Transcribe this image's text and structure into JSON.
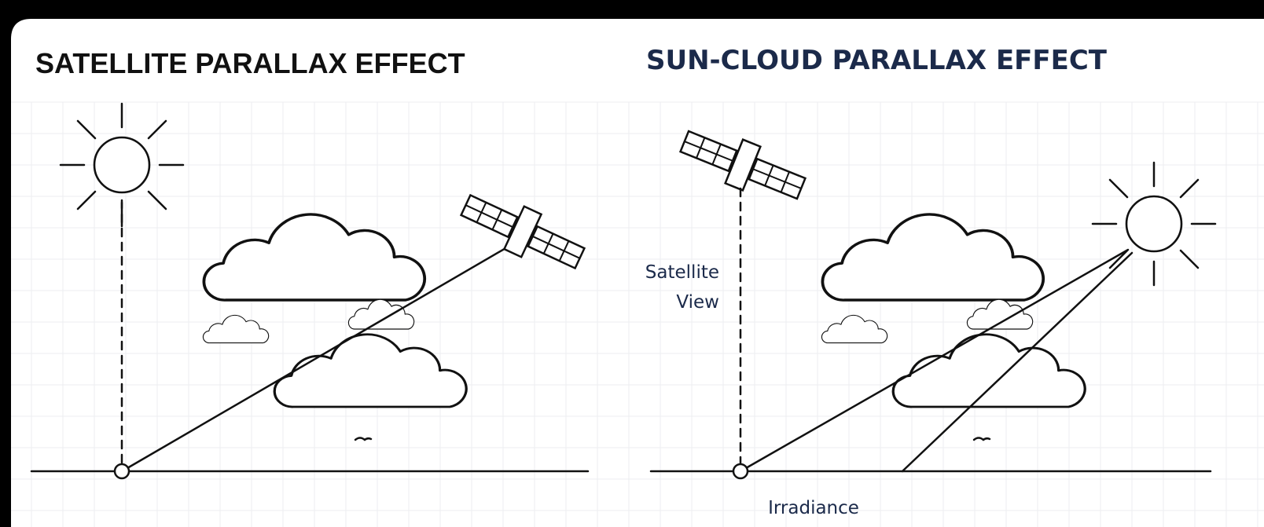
{
  "left": {
    "title": "SATELLITE PARALLAX EFFECT"
  },
  "right": {
    "title": "SUN-CLOUD PARALLAX EFFECT",
    "satellite_label_line1": "Satellite",
    "satellite_label_line2": "View",
    "irradiance_label": "Irradiance"
  }
}
